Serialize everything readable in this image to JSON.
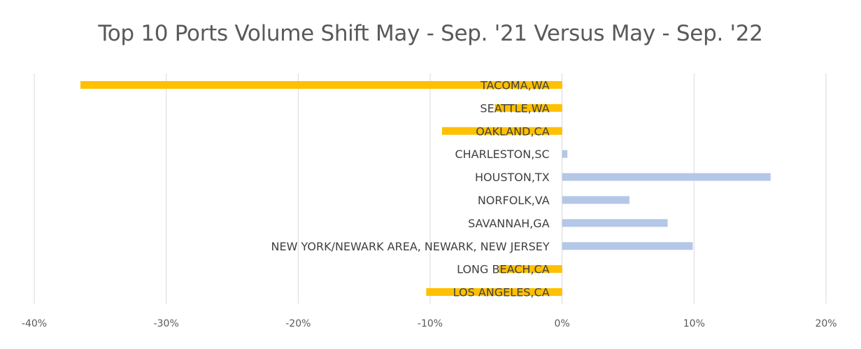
{
  "chart_data": {
    "type": "bar",
    "orientation": "horizontal",
    "title": "Top 10 Ports Volume Shift May - Sep. '21 Versus May - Sep. '22",
    "xlabel": "",
    "ylabel": "",
    "xlim": [
      -40,
      20
    ],
    "x_ticks": [
      -40,
      -30,
      -20,
      -10,
      0,
      10,
      20
    ],
    "x_tick_labels": [
      "-40%",
      "-30%",
      "-20%",
      "-10%",
      "0%",
      "10%",
      "20%"
    ],
    "grid": "vertical",
    "legend": "none",
    "categories": [
      "TACOMA,WA",
      "SEATTLE,WA",
      "OAKLAND,CA",
      "CHARLESTON,SC",
      "HOUSTON,TX",
      "NORFOLK,VA",
      "SAVANNAH,GA",
      "NEW YORK/NEWARK AREA, NEWARK, NEW JERSEY",
      "LONG BEACH,CA",
      "LOS ANGELES,CA"
    ],
    "values": [
      -36.5,
      -5.1,
      -9.1,
      0.4,
      15.8,
      5.1,
      8.0,
      9.9,
      -4.8,
      -10.3
    ],
    "colors": {
      "negative": "#FFC000",
      "positive": "#B4C7E7",
      "grid": "#D9D9D9"
    }
  }
}
